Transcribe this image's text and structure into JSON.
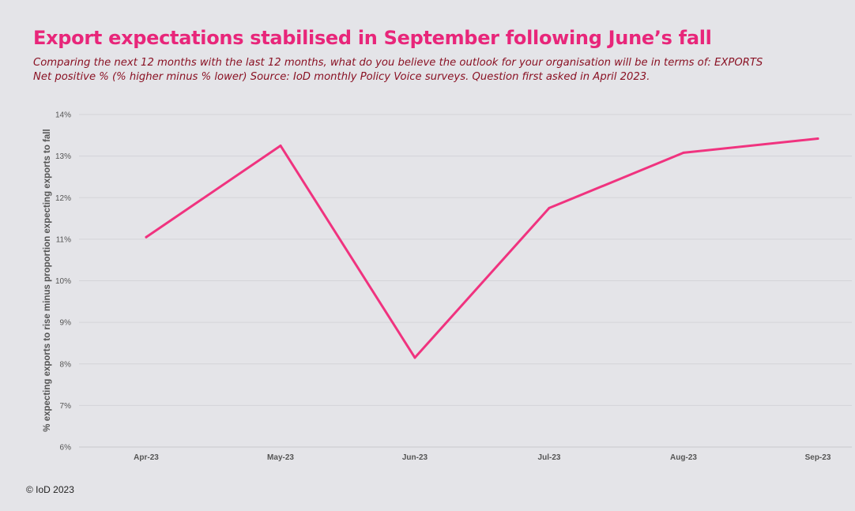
{
  "header": {
    "title": "Export expectations stabilised in September following June’s fall",
    "subtitle_line1": "Comparing the next 12 months with the last 12 months, what do you believe the outlook for your organisation will be in terms of: EXPORTS",
    "subtitle_line2": "Net positive % (% higher minus % lower)  Source: IoD monthly Policy Voice surveys. Question first asked in April 2023."
  },
  "footer": {
    "copyright": "© IoD 2023"
  },
  "chart_data": {
    "type": "line",
    "categories": [
      "Apr-23",
      "May-23",
      "Jun-23",
      "Jul-23",
      "Aug-23",
      "Sep-23"
    ],
    "series": [
      {
        "values": [
          11.05,
          13.25,
          8.15,
          11.75,
          13.08,
          13.42
        ],
        "color": "#f0337f"
      }
    ],
    "ylabel": "% expecting exports to rise minus proportion expecting exports to fall",
    "ylim": [
      6,
      14
    ],
    "yticks": [
      6,
      7,
      8,
      9,
      10,
      11,
      12,
      13,
      14
    ],
    "ytick_labels": [
      "6%",
      "7%",
      "8%",
      "9%",
      "10%",
      "11%",
      "12%",
      "13%",
      "14%"
    ],
    "grid": true,
    "legend": "none"
  }
}
